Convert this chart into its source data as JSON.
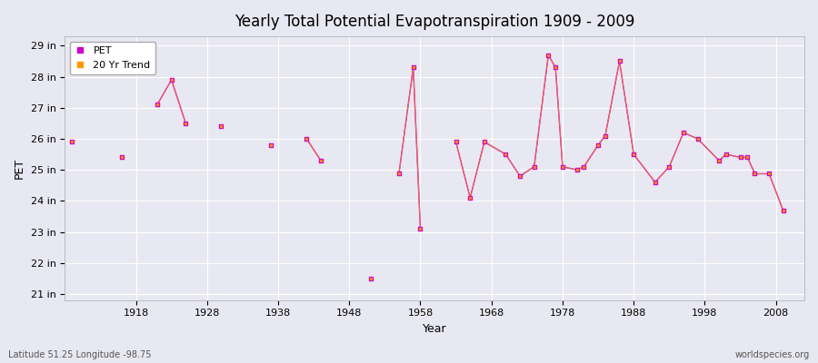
{
  "title": "Yearly Total Potential Evapotranspiration 1909 - 2009",
  "xlabel": "Year",
  "ylabel": "PET",
  "subtitle_left": "Latitude 51.25 Longitude -98.75",
  "subtitle_right": "worldspecies.org",
  "ylim": [
    21,
    29
  ],
  "xlim": [
    1908,
    2012
  ],
  "ytick_labels": [
    "21 in",
    "22 in",
    "23 in",
    "24 in",
    "25 in",
    "26 in",
    "27 in",
    "28 in",
    "29 in"
  ],
  "ytick_values": [
    21,
    22,
    23,
    24,
    25,
    26,
    27,
    28,
    29
  ],
  "xtick_values": [
    1918,
    1928,
    1938,
    1948,
    1958,
    1968,
    1978,
    1988,
    1998,
    2008
  ],
  "pet_color": "#cc00cc",
  "trend_color": "#ff9900",
  "bg_color": "#e8e8f2",
  "plot_bg_color": "#e8e8f2",
  "grid_color": "#ffffff",
  "pet_data": {
    "years": [
      1909,
      1916,
      1921,
      1923,
      1925,
      1930,
      1937,
      1942,
      1944,
      1951,
      1955,
      1957,
      1958,
      1963,
      1965,
      1967,
      1970,
      1972,
      1974,
      1976,
      1977,
      1978,
      1980,
      1981,
      1983,
      1984,
      1986,
      1988,
      1991,
      1993,
      1995,
      1997,
      2000,
      2001,
      2003,
      2004,
      2005,
      2007,
      2009
    ],
    "values": [
      25.9,
      25.4,
      27.1,
      27.9,
      26.5,
      26.4,
      25.8,
      26.0,
      25.3,
      21.5,
      24.9,
      28.3,
      23.1,
      25.9,
      24.1,
      25.9,
      25.5,
      24.8,
      25.1,
      28.7,
      28.3,
      25.1,
      25.0,
      25.1,
      25.8,
      26.1,
      28.5,
      25.5,
      24.6,
      25.1,
      26.2,
      26.0,
      25.3,
      25.5,
      25.4,
      25.4,
      24.9,
      24.9,
      23.7
    ]
  },
  "legend_entries": [
    "PET",
    "20 Yr Trend"
  ]
}
